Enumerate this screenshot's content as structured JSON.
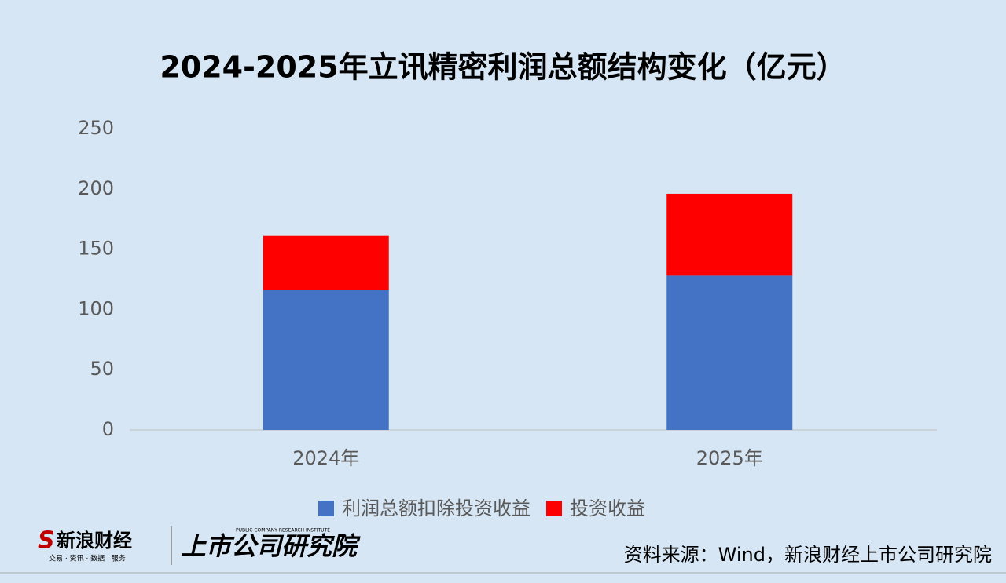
{
  "chart_data": {
    "type": "stacked_bar",
    "title": "2024-2025年立讯精密利润总额结构变化（亿元）",
    "categories": [
      "2024年",
      "2025年"
    ],
    "series": [
      {
        "name": "利润总额扣除投资收益",
        "color": "#4472c4",
        "values": [
          116,
          128
        ]
      },
      {
        "name": "投资收益",
        "color": "#ff0000",
        "values": [
          45,
          68
        ]
      }
    ],
    "ylim": [
      0,
      250
    ],
    "yticks": [
      0,
      50,
      100,
      150,
      200,
      250
    ],
    "grid": false,
    "legend": "bottom",
    "source": "资料来源：Wind，新浪财经上市公司研究院",
    "logo_sina": "新浪财经",
    "logo_sina_tag": "交易 · 资讯 · 数据 · 服务",
    "logo_institute": "上市公司研究院",
    "logo_institute_en": "PUBLIC COMPANY RESEARCH INSTITUTE"
  }
}
